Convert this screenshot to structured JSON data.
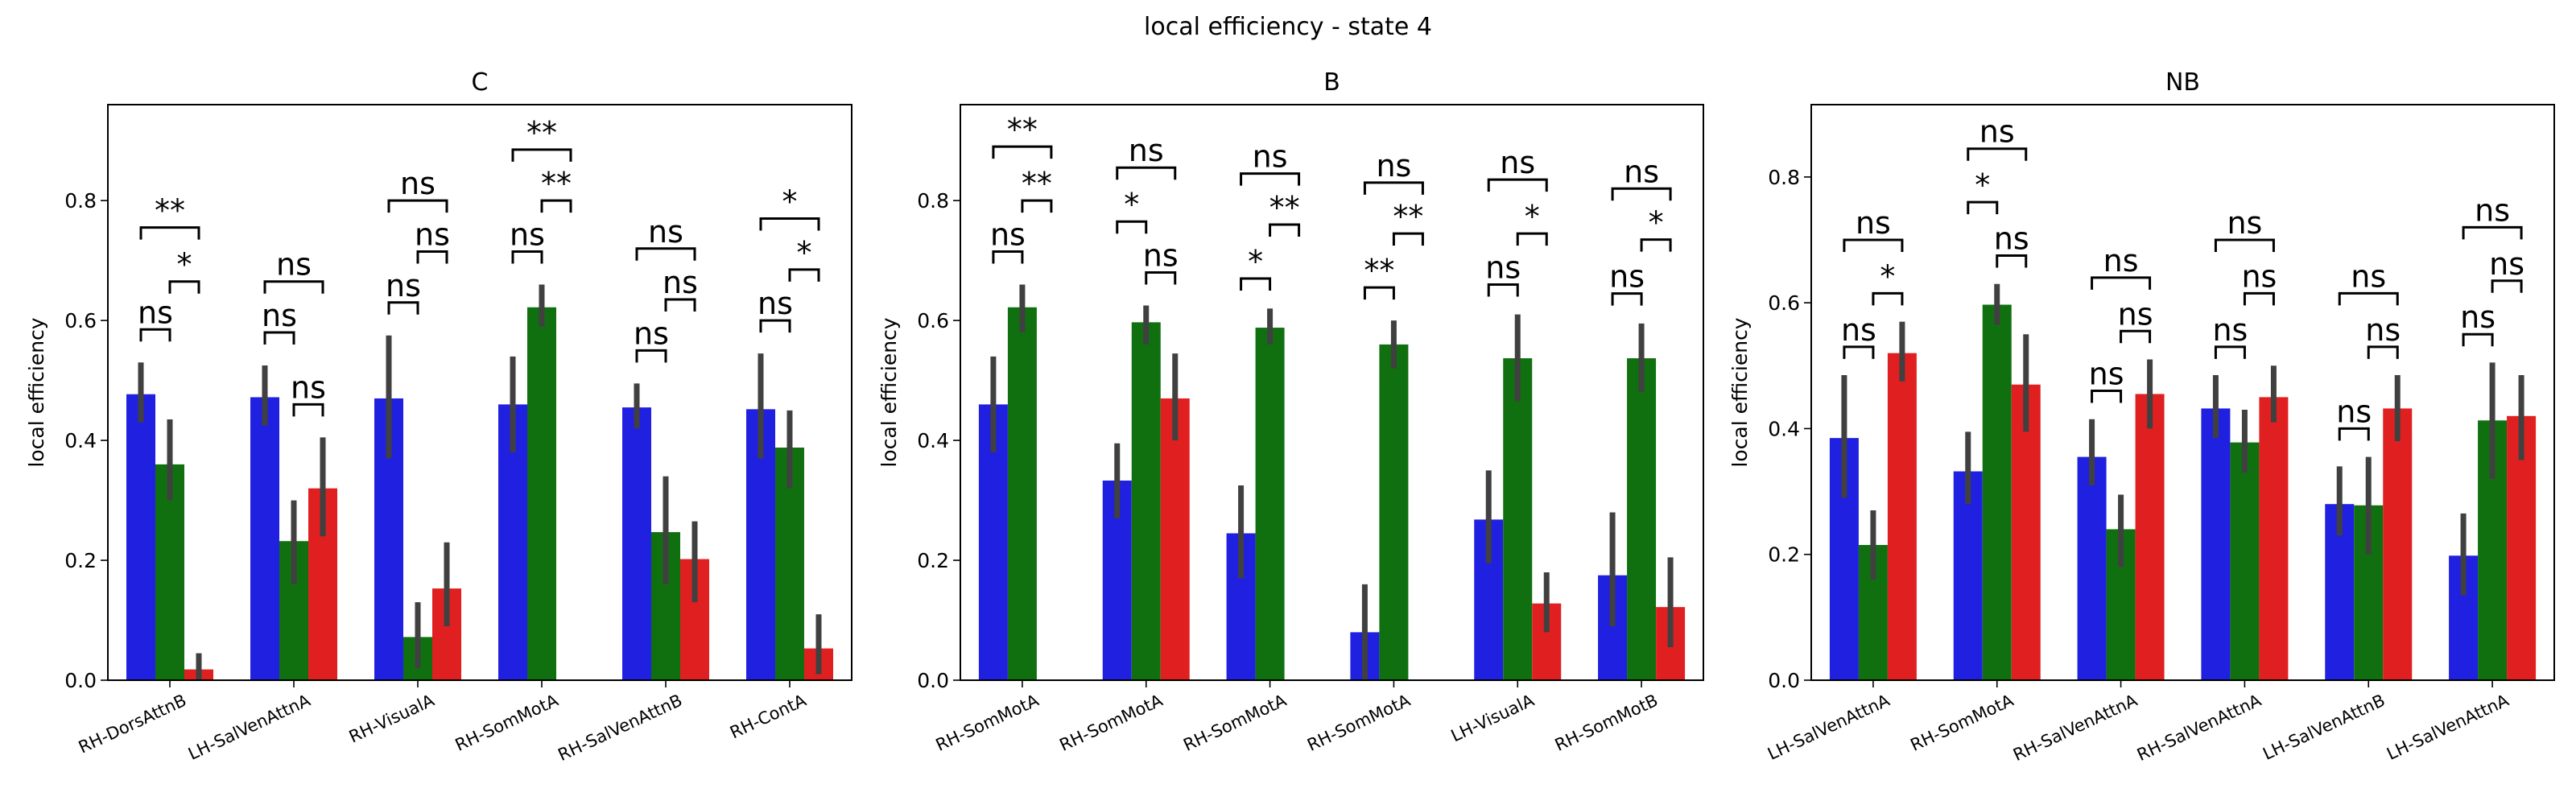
{
  "suptitle": "local efficiency - state 4",
  "colors": {
    "series1": "#2020e0",
    "series2": "#107010",
    "series3": "#e02020",
    "errorbar": "#404040"
  },
  "chart_data": [
    {
      "type": "bar",
      "title": "C",
      "ylabel": "local efficiency",
      "ylim": [
        0,
        0.96
      ],
      "yticks": [
        "0.0",
        "0.2",
        "0.4",
        "0.6",
        "0.8"
      ],
      "categories": [
        "RH-DorsAttnB",
        "LH-SalVenAttnA",
        "RH-VisualA",
        "RH-SomMotA",
        "RH-SalVenAttnB",
        "RH-ContA"
      ],
      "series": [
        {
          "values": [
            0.477,
            0.472,
            0.47,
            0.46,
            0.455,
            0.452
          ],
          "err_low": [
            0.43,
            0.425,
            0.37,
            0.38,
            0.42,
            0.37
          ],
          "err_high": [
            0.53,
            0.525,
            0.575,
            0.54,
            0.495,
            0.545
          ]
        },
        {
          "values": [
            0.36,
            0.232,
            0.072,
            0.622,
            0.247,
            0.388
          ],
          "err_low": [
            0.3,
            0.16,
            0.02,
            0.59,
            0.16,
            0.32
          ],
          "err_high": [
            0.435,
            0.3,
            0.13,
            0.66,
            0.34,
            0.45
          ]
        },
        {
          "values": [
            0.018,
            0.32,
            0.153,
            null,
            0.202,
            0.053
          ],
          "err_low": [
            0.0,
            0.24,
            0.09,
            null,
            0.13,
            0.01
          ],
          "err_high": [
            0.045,
            0.405,
            0.23,
            null,
            0.265,
            0.11
          ]
        }
      ],
      "comparisons": [
        [
          [
            "**",
            1,
            3,
            0.755
          ],
          [
            "*",
            2,
            3,
            0.665
          ],
          [
            "ns",
            1,
            2,
            0.585
          ]
        ],
        [
          [
            "ns",
            1,
            3,
            0.665
          ],
          [
            "ns",
            2,
            3,
            0.46
          ],
          [
            "ns",
            1,
            2,
            0.58
          ]
        ],
        [
          [
            "ns",
            1,
            3,
            0.8
          ],
          [
            "ns",
            2,
            3,
            0.715
          ],
          [
            "ns",
            1,
            2,
            0.63
          ]
        ],
        [
          [
            "**",
            1,
            3,
            0.885
          ],
          [
            "**",
            2,
            3,
            0.8
          ],
          [
            "ns",
            1,
            2,
            0.715
          ]
        ],
        [
          [
            "ns",
            1,
            3,
            0.72
          ],
          [
            "ns",
            2,
            3,
            0.635
          ],
          [
            "ns",
            1,
            2,
            0.55
          ]
        ],
        [
          [
            "*",
            1,
            3,
            0.77
          ],
          [
            "*",
            2,
            3,
            0.685
          ],
          [
            "ns",
            1,
            2,
            0.6
          ]
        ]
      ]
    },
    {
      "type": "bar",
      "title": "B",
      "ylabel": "local efficiency",
      "ylim": [
        0,
        0.96
      ],
      "yticks": [
        "0.0",
        "0.2",
        "0.4",
        "0.6",
        "0.8"
      ],
      "categories": [
        "RH-SomMotA",
        "RH-SomMotA",
        "RH-SomMotA",
        "RH-SomMotA",
        "LH-VisualA",
        "RH-SomMotB"
      ],
      "series": [
        {
          "values": [
            0.46,
            0.333,
            0.245,
            0.08,
            0.268,
            0.175
          ],
          "err_low": [
            0.38,
            0.27,
            0.17,
            0.0,
            0.195,
            0.09
          ],
          "err_high": [
            0.54,
            0.395,
            0.325,
            0.16,
            0.35,
            0.28
          ]
        },
        {
          "values": [
            0.622,
            0.597,
            0.588,
            0.56,
            0.537,
            0.537
          ],
          "err_low": [
            0.58,
            0.56,
            0.56,
            0.52,
            0.465,
            0.48
          ],
          "err_high": [
            0.66,
            0.625,
            0.62,
            0.6,
            0.61,
            0.595
          ]
        },
        {
          "values": [
            null,
            0.47,
            null,
            null,
            0.128,
            0.122
          ],
          "err_low": [
            null,
            0.4,
            null,
            null,
            0.08,
            0.055
          ],
          "err_high": [
            null,
            0.545,
            null,
            null,
            0.18,
            0.205
          ]
        }
      ],
      "comparisons": [
        [
          [
            "**",
            1,
            3,
            0.89
          ],
          [
            "**",
            2,
            3,
            0.8
          ],
          [
            "ns",
            1,
            2,
            0.715
          ]
        ],
        [
          [
            "ns",
            1,
            3,
            0.855
          ],
          [
            "ns",
            2,
            3,
            0.68
          ],
          [
            "*",
            1,
            2,
            0.765
          ]
        ],
        [
          [
            "ns",
            1,
            3,
            0.845
          ],
          [
            "**",
            2,
            3,
            0.76
          ],
          [
            "*",
            1,
            2,
            0.67
          ]
        ],
        [
          [
            "ns",
            1,
            3,
            0.83
          ],
          [
            "**",
            2,
            3,
            0.745
          ],
          [
            "**",
            1,
            2,
            0.655
          ]
        ],
        [
          [
            "ns",
            1,
            3,
            0.835
          ],
          [
            "*",
            2,
            3,
            0.745
          ],
          [
            "ns",
            1,
            2,
            0.66
          ]
        ],
        [
          [
            "ns",
            1,
            3,
            0.82
          ],
          [
            "*",
            2,
            3,
            0.735
          ],
          [
            "ns",
            1,
            2,
            0.645
          ]
        ]
      ]
    },
    {
      "type": "bar",
      "title": "NB",
      "ylabel": "local efficiency",
      "ylim": [
        0,
        0.915
      ],
      "yticks": [
        "0.0",
        "0.2",
        "0.4",
        "0.6",
        "0.8"
      ],
      "categories": [
        "LH-SalVenAttnA",
        "RH-SomMotA",
        "RH-SalVenAttnA",
        "RH-SalVenAttnA",
        "LH-SalVenAttnB",
        "LH-SalVenAttnA"
      ],
      "series": [
        {
          "values": [
            0.385,
            0.332,
            0.355,
            0.432,
            0.28,
            0.198
          ],
          "err_low": [
            0.29,
            0.28,
            0.31,
            0.385,
            0.23,
            0.135
          ],
          "err_high": [
            0.485,
            0.395,
            0.415,
            0.485,
            0.34,
            0.265
          ]
        },
        {
          "values": [
            0.215,
            0.597,
            0.24,
            0.378,
            0.278,
            0.413
          ],
          "err_low": [
            0.16,
            0.565,
            0.18,
            0.33,
            0.2,
            0.32
          ],
          "err_high": [
            0.27,
            0.63,
            0.295,
            0.43,
            0.355,
            0.505
          ]
        },
        {
          "values": [
            0.52,
            0.47,
            0.455,
            0.45,
            0.432,
            0.42
          ],
          "err_low": [
            0.475,
            0.395,
            0.4,
            0.41,
            0.38,
            0.35
          ],
          "err_high": [
            0.57,
            0.55,
            0.51,
            0.5,
            0.485,
            0.485
          ]
        }
      ],
      "comparisons": [
        [
          [
            "ns",
            1,
            3,
            0.7
          ],
          [
            "*",
            2,
            3,
            0.615
          ],
          [
            "ns",
            1,
            2,
            0.53
          ]
        ],
        [
          [
            "ns",
            1,
            3,
            0.845
          ],
          [
            "ns",
            2,
            3,
            0.675
          ],
          [
            "*",
            1,
            2,
            0.76
          ]
        ],
        [
          [
            "ns",
            1,
            3,
            0.64
          ],
          [
            "ns",
            2,
            3,
            0.555
          ],
          [
            "ns",
            1,
            2,
            0.46
          ]
        ],
        [
          [
            "ns",
            1,
            3,
            0.7
          ],
          [
            "ns",
            2,
            3,
            0.615
          ],
          [
            "ns",
            1,
            2,
            0.53
          ]
        ],
        [
          [
            "ns",
            1,
            3,
            0.615
          ],
          [
            "ns",
            2,
            3,
            0.53
          ],
          [
            "ns",
            1,
            2,
            0.4
          ]
        ],
        [
          [
            "ns",
            1,
            3,
            0.72
          ],
          [
            "ns",
            2,
            3,
            0.635
          ],
          [
            "ns",
            1,
            2,
            0.55
          ]
        ]
      ]
    }
  ]
}
